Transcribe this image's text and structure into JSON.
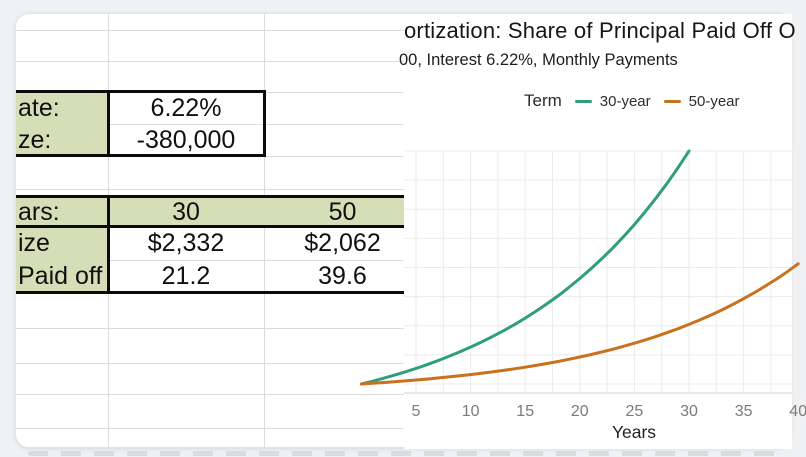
{
  "spreadsheet": {
    "inputs": [
      {
        "label": "ate:",
        "value": "6.22%"
      },
      {
        "label": "ze:",
        "value": "-380,000"
      }
    ],
    "results": {
      "header": {
        "label": "ars:",
        "col30": "30",
        "col50": "50"
      },
      "rows": [
        {
          "label": "ize",
          "col30": "$2,332",
          "col50": "$2,062"
        },
        {
          "label": "Paid off",
          "col30": "21.2",
          "col50": "39.6"
        }
      ]
    },
    "label_cell_fill": "#d6deb7"
  },
  "chart": {
    "title_visible": "ortization: Share of Principal Paid Off O",
    "subtitle_visible": "00, Interest 6.22%, Monthly Payments"
  },
  "chart_data": {
    "type": "line",
    "title_visible": "ortization: Share of Principal Paid Off O",
    "subtitle_visible": "00, Interest 6.22%, Monthly Payments",
    "xlabel": "Years",
    "x_ticks": [
      5,
      10,
      15,
      20,
      25,
      30,
      35,
      40
    ],
    "x_visible_range": [
      3.9,
      40.2
    ],
    "ylim": [
      0,
      100
    ],
    "grid": true,
    "legend": {
      "title": "Term",
      "position": "top"
    },
    "series": [
      {
        "name": "30-year",
        "color": "#2f9e7d",
        "points": [
          [
            0,
            0
          ],
          [
            1,
            1.18
          ],
          [
            2,
            2.43
          ],
          [
            3,
            3.77
          ],
          [
            4,
            5.19
          ],
          [
            5,
            6.7
          ],
          [
            6,
            8.3
          ],
          [
            7,
            10.01
          ],
          [
            8,
            11.83
          ],
          [
            9,
            13.77
          ],
          [
            10,
            15.83
          ],
          [
            11,
            18.02
          ],
          [
            12,
            20.35
          ],
          [
            13,
            22.83
          ],
          [
            14,
            25.47
          ],
          [
            15,
            28.28
          ],
          [
            16,
            31.27
          ],
          [
            17,
            34.45
          ],
          [
            18,
            37.83
          ],
          [
            19,
            41.44
          ],
          [
            20,
            45.26
          ],
          [
            21,
            49.34
          ],
          [
            22,
            53.68
          ],
          [
            23,
            58.3
          ],
          [
            24,
            63.2
          ],
          [
            25,
            68.43
          ],
          [
            26,
            73.98
          ],
          [
            27,
            79.9
          ],
          [
            28,
            86.19
          ],
          [
            29,
            92.89
          ],
          [
            30,
            100
          ]
        ]
      },
      {
        "name": "50-year",
        "color": "#c8711f",
        "points": [
          [
            0,
            0
          ],
          [
            1,
            0.3
          ],
          [
            2,
            0.62
          ],
          [
            3,
            0.96
          ],
          [
            4,
            1.33
          ],
          [
            5,
            1.71
          ],
          [
            6,
            2.12
          ],
          [
            7,
            2.56
          ],
          [
            8,
            3.03
          ],
          [
            9,
            3.52
          ],
          [
            10,
            4.05
          ],
          [
            11,
            4.61
          ],
          [
            12,
            5.2
          ],
          [
            13,
            5.84
          ],
          [
            14,
            6.51
          ],
          [
            15,
            7.23
          ],
          [
            16,
            8.0
          ],
          [
            17,
            8.81
          ],
          [
            18,
            9.67
          ],
          [
            19,
            10.59
          ],
          [
            20,
            11.57
          ],
          [
            21,
            12.62
          ],
          [
            22,
            13.73
          ],
          [
            23,
            14.91
          ],
          [
            24,
            16.16
          ],
          [
            25,
            17.5
          ],
          [
            26,
            18.92
          ],
          [
            27,
            20.43
          ],
          [
            28,
            22.04
          ],
          [
            29,
            23.75
          ],
          [
            30,
            25.57
          ],
          [
            31,
            27.51
          ],
          [
            32,
            29.57
          ],
          [
            33,
            31.77
          ],
          [
            34,
            34.1
          ],
          [
            35,
            36.59
          ],
          [
            36,
            39.23
          ],
          [
            37,
            42.04
          ],
          [
            38,
            45.03
          ],
          [
            39,
            48.21
          ],
          [
            40,
            51.6
          ]
        ]
      }
    ]
  }
}
